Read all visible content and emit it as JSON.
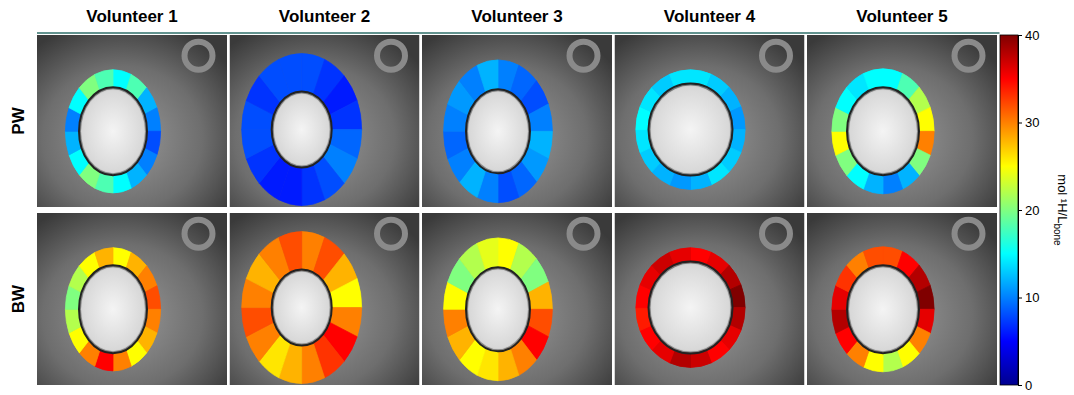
{
  "chart_data": {
    "type": "heatmap",
    "columns": [
      "Volunteer 1",
      "Volunteer 2",
      "Volunteer 3",
      "Volunteer 4",
      "Volunteer 5"
    ],
    "rows": [
      "PW",
      "BW"
    ],
    "cells": [
      [
        [
          15,
          18,
          12,
          10,
          8,
          10,
          12,
          15,
          18,
          20,
          15,
          12,
          10,
          15,
          20,
          18
        ],
        [
          8,
          7,
          6,
          7,
          9,
          10,
          8,
          7,
          6,
          6,
          7,
          8,
          8,
          7,
          8,
          8
        ],
        [
          10,
          9,
          8,
          10,
          12,
          11,
          9,
          8,
          10,
          12,
          10,
          9,
          10,
          11,
          10,
          12
        ],
        [
          14,
          13,
          12,
          11,
          12,
          13,
          14,
          12,
          11,
          12,
          13,
          14,
          15,
          14,
          13,
          14
        ],
        [
          15,
          18,
          22,
          25,
          30,
          20,
          12,
          10,
          12,
          15,
          20,
          25,
          20,
          15,
          14,
          15
        ]
      ],
      [
        [
          25,
          28,
          30,
          32,
          30,
          28,
          25,
          30,
          35,
          30,
          25,
          22,
          20,
          22,
          25,
          28
        ],
        [
          30,
          32,
          28,
          25,
          30,
          35,
          33,
          30,
          28,
          26,
          30,
          32,
          30,
          28,
          30,
          32
        ],
        [
          25,
          22,
          20,
          28,
          32,
          35,
          30,
          28,
          26,
          25,
          28,
          30,
          25,
          20,
          22,
          24
        ],
        [
          35,
          36,
          38,
          40,
          38,
          36,
          35,
          37,
          38,
          36,
          35,
          34,
          35,
          36,
          37,
          36
        ],
        [
          32,
          35,
          38,
          40,
          36,
          30,
          25,
          22,
          25,
          30,
          35,
          38,
          36,
          33,
          30,
          32
        ]
      ]
    ],
    "colorbar_range": [
      0,
      40
    ],
    "colorbar_ticks": [
      0,
      10,
      20,
      30,
      40
    ],
    "colorbar_label": "mol ¹H/L",
    "colorbar_label_sub": "bone"
  }
}
